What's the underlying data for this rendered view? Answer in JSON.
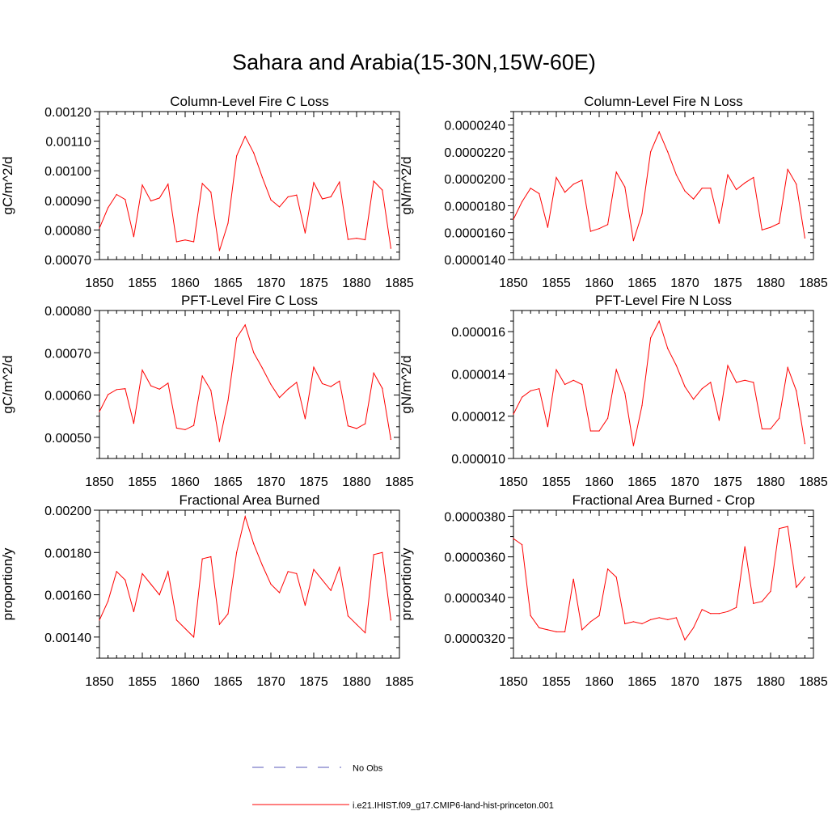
{
  "title": "Sahara and Arabia(15-30N,15W-60E)",
  "colors": {
    "model_line": "#ff0000",
    "obs_line": "#5a5ab8",
    "axis": "#000000"
  },
  "legend": {
    "obs_label": "No Obs",
    "model_label": "i.e21.IHIST.f09_g17.CMIP6-land-hist-princeton.001"
  },
  "chart_data": [
    {
      "type": "line",
      "title": "Column-Level Fire C Loss",
      "ylabel": "gC/m^2/d",
      "xlim": [
        1850,
        1885
      ],
      "ylim": [
        0.0007,
        0.0012
      ],
      "x_ticks": [
        "1850",
        "1855",
        "1860",
        "1865",
        "1870",
        "1875",
        "1880",
        "1885"
      ],
      "y_ticks": [
        "0.00070",
        "0.00080",
        "0.00090",
        "0.00100",
        "0.00110",
        "0.00120"
      ],
      "x": [
        1850,
        1851,
        1852,
        1853,
        1854,
        1855,
        1856,
        1857,
        1858,
        1859,
        1860,
        1861,
        1862,
        1863,
        1864,
        1865,
        1866,
        1867,
        1868,
        1869,
        1870,
        1871,
        1872,
        1873,
        1874,
        1875,
        1876,
        1877,
        1878,
        1879,
        1880,
        1881,
        1882,
        1883,
        1884
      ],
      "values": [
        0.000806,
        0.000875,
        0.00092,
        0.000903,
        0.000777,
        0.000952,
        0.000898,
        0.000908,
        0.000955,
        0.00076,
        0.000766,
        0.00076,
        0.000957,
        0.000928,
        0.00073,
        0.000823,
        0.00105,
        0.001116,
        0.00106,
        0.000978,
        0.000902,
        0.000878,
        0.000912,
        0.000918,
        0.00079,
        0.00096,
        0.000905,
        0.000912,
        0.000962,
        0.000768,
        0.000772,
        0.000767,
        0.000965,
        0.000935,
        0.000738
      ]
    },
    {
      "type": "line",
      "title": "Column-Level Fire N Loss",
      "ylabel": "gN/m^2/d",
      "xlim": [
        1850,
        1885
      ],
      "ylim": [
        1.4e-05,
        2.5e-05
      ],
      "x_ticks": [
        "1850",
        "1855",
        "1860",
        "1865",
        "1870",
        "1875",
        "1880",
        "1885"
      ],
      "y_ticks": [
        "0.0000140",
        "0.0000160",
        "0.0000180",
        "0.0000200",
        "0.0000220",
        "0.0000240"
      ],
      "x": [
        1850,
        1851,
        1852,
        1853,
        1854,
        1855,
        1856,
        1857,
        1858,
        1859,
        1860,
        1861,
        1862,
        1863,
        1864,
        1865,
        1866,
        1867,
        1868,
        1869,
        1870,
        1871,
        1872,
        1873,
        1874,
        1875,
        1876,
        1877,
        1878,
        1879,
        1880,
        1881,
        1882,
        1883,
        1884
      ],
      "values": [
        1.7e-05,
        1.83e-05,
        1.93e-05,
        1.89e-05,
        1.64e-05,
        2.01e-05,
        1.9e-05,
        1.96e-05,
        1.99e-05,
        1.61e-05,
        1.63e-05,
        1.66e-05,
        2.05e-05,
        1.94e-05,
        1.54e-05,
        1.74e-05,
        2.2e-05,
        2.35e-05,
        2.2e-05,
        2.03e-05,
        1.91e-05,
        1.85e-05,
        1.93e-05,
        1.93e-05,
        1.67e-05,
        2.03e-05,
        1.92e-05,
        1.97e-05,
        2.01e-05,
        1.62e-05,
        1.64e-05,
        1.67e-05,
        2.07e-05,
        1.96e-05,
        1.56e-05
      ]
    },
    {
      "type": "line",
      "title": "PFT-Level Fire C Loss",
      "ylabel": "gC/m^2/d",
      "xlim": [
        1850,
        1885
      ],
      "ylim": [
        0.00045,
        0.0008
      ],
      "x_ticks": [
        "1850",
        "1855",
        "1860",
        "1865",
        "1870",
        "1875",
        "1880",
        "1885"
      ],
      "y_ticks": [
        "0.00050",
        "0.00060",
        "0.00070",
        "0.00080"
      ],
      "x": [
        1850,
        1851,
        1852,
        1853,
        1854,
        1855,
        1856,
        1857,
        1858,
        1859,
        1860,
        1861,
        1862,
        1863,
        1864,
        1865,
        1866,
        1867,
        1868,
        1869,
        1870,
        1871,
        1872,
        1873,
        1874,
        1875,
        1876,
        1877,
        1878,
        1879,
        1880,
        1881,
        1882,
        1883,
        1884
      ],
      "values": [
        0.000561,
        0.000601,
        0.000613,
        0.000615,
        0.000533,
        0.000659,
        0.000622,
        0.000614,
        0.000628,
        0.000522,
        0.000518,
        0.000528,
        0.000645,
        0.000611,
        0.00049,
        0.000587,
        0.000735,
        0.000766,
        0.0007,
        0.000664,
        0.000625,
        0.000594,
        0.000614,
        0.00063,
        0.000544,
        0.000666,
        0.000627,
        0.00062,
        0.000633,
        0.000527,
        0.000521,
        0.000532,
        0.000652,
        0.000616,
        0.000495
      ]
    },
    {
      "type": "line",
      "title": "PFT-Level Fire N Loss",
      "ylabel": "gN/m^2/d",
      "xlim": [
        1850,
        1885
      ],
      "ylim": [
        1e-05,
        1.7e-05
      ],
      "x_ticks": [
        "1850",
        "1855",
        "1860",
        "1865",
        "1870",
        "1875",
        "1880",
        "1885"
      ],
      "y_ticks": [
        "0.000010",
        "0.000012",
        "0.000014",
        "0.000016"
      ],
      "x": [
        1850,
        1851,
        1852,
        1853,
        1854,
        1855,
        1856,
        1857,
        1858,
        1859,
        1860,
        1861,
        1862,
        1863,
        1864,
        1865,
        1866,
        1867,
        1868,
        1869,
        1870,
        1871,
        1872,
        1873,
        1874,
        1875,
        1876,
        1877,
        1878,
        1879,
        1880,
        1881,
        1882,
        1883,
        1884
      ],
      "values": [
        1.21e-05,
        1.29e-05,
        1.32e-05,
        1.33e-05,
        1.15e-05,
        1.42e-05,
        1.35e-05,
        1.37e-05,
        1.35e-05,
        1.13e-05,
        1.13e-05,
        1.19e-05,
        1.42e-05,
        1.31e-05,
        1.06e-05,
        1.25e-05,
        1.57e-05,
        1.65e-05,
        1.52e-05,
        1.44e-05,
        1.34e-05,
        1.28e-05,
        1.33e-05,
        1.36e-05,
        1.18e-05,
        1.44e-05,
        1.36e-05,
        1.37e-05,
        1.36e-05,
        1.14e-05,
        1.14e-05,
        1.19e-05,
        1.43e-05,
        1.32e-05,
        1.07e-05
      ]
    },
    {
      "type": "line",
      "title": "Fractional Area Burned",
      "ylabel": "proportion/y",
      "xlim": [
        1850,
        1885
      ],
      "ylim": [
        0.0013,
        0.002
      ],
      "x_ticks": [
        "1850",
        "1855",
        "1860",
        "1865",
        "1870",
        "1875",
        "1880",
        "1885"
      ],
      "y_ticks": [
        "0.00140",
        "0.00160",
        "0.00180",
        "0.00200"
      ],
      "x": [
        1850,
        1851,
        1852,
        1853,
        1854,
        1855,
        1856,
        1857,
        1858,
        1859,
        1860,
        1861,
        1862,
        1863,
        1864,
        1865,
        1866,
        1867,
        1868,
        1869,
        1870,
        1871,
        1872,
        1873,
        1874,
        1875,
        1876,
        1877,
        1878,
        1879,
        1880,
        1881,
        1882,
        1883,
        1884
      ],
      "values": [
        0.00148,
        0.00157,
        0.00171,
        0.00167,
        0.00152,
        0.0017,
        0.00165,
        0.0016,
        0.00171,
        0.00148,
        0.00144,
        0.0014,
        0.00177,
        0.00178,
        0.00146,
        0.00151,
        0.0018,
        0.00197,
        0.00184,
        0.00174,
        0.00165,
        0.00161,
        0.00171,
        0.0017,
        0.00155,
        0.00172,
        0.00167,
        0.00162,
        0.00173,
        0.0015,
        0.00146,
        0.00142,
        0.00179,
        0.0018,
        0.00148
      ]
    },
    {
      "type": "line",
      "title": "Fractional Area Burned - Crop",
      "ylabel": "proportion/y",
      "xlim": [
        1850,
        1885
      ],
      "ylim": [
        3.1e-05,
        3.83e-05
      ],
      "x_ticks": [
        "1850",
        "1855",
        "1860",
        "1865",
        "1870",
        "1875",
        "1880",
        "1885"
      ],
      "y_ticks": [
        "0.0000320",
        "0.0000340",
        "0.0000360",
        "0.0000380"
      ],
      "x": [
        1850,
        1851,
        1852,
        1853,
        1854,
        1855,
        1856,
        1857,
        1858,
        1859,
        1860,
        1861,
        1862,
        1863,
        1864,
        1865,
        1866,
        1867,
        1868,
        1869,
        1870,
        1871,
        1872,
        1873,
        1874,
        1875,
        1876,
        1877,
        1878,
        1879,
        1880,
        1881,
        1882,
        1883,
        1884
      ],
      "values": [
        3.69e-05,
        3.66e-05,
        3.31e-05,
        3.25e-05,
        3.24e-05,
        3.23e-05,
        3.23e-05,
        3.49e-05,
        3.24e-05,
        3.28e-05,
        3.31e-05,
        3.54e-05,
        3.5e-05,
        3.27e-05,
        3.28e-05,
        3.27e-05,
        3.29e-05,
        3.3e-05,
        3.29e-05,
        3.3e-05,
        3.19e-05,
        3.25e-05,
        3.34e-05,
        3.32e-05,
        3.32e-05,
        3.33e-05,
        3.35e-05,
        3.65e-05,
        3.37e-05,
        3.38e-05,
        3.43e-05,
        3.74e-05,
        3.75e-05,
        3.45e-05,
        3.5e-05
      ]
    }
  ]
}
